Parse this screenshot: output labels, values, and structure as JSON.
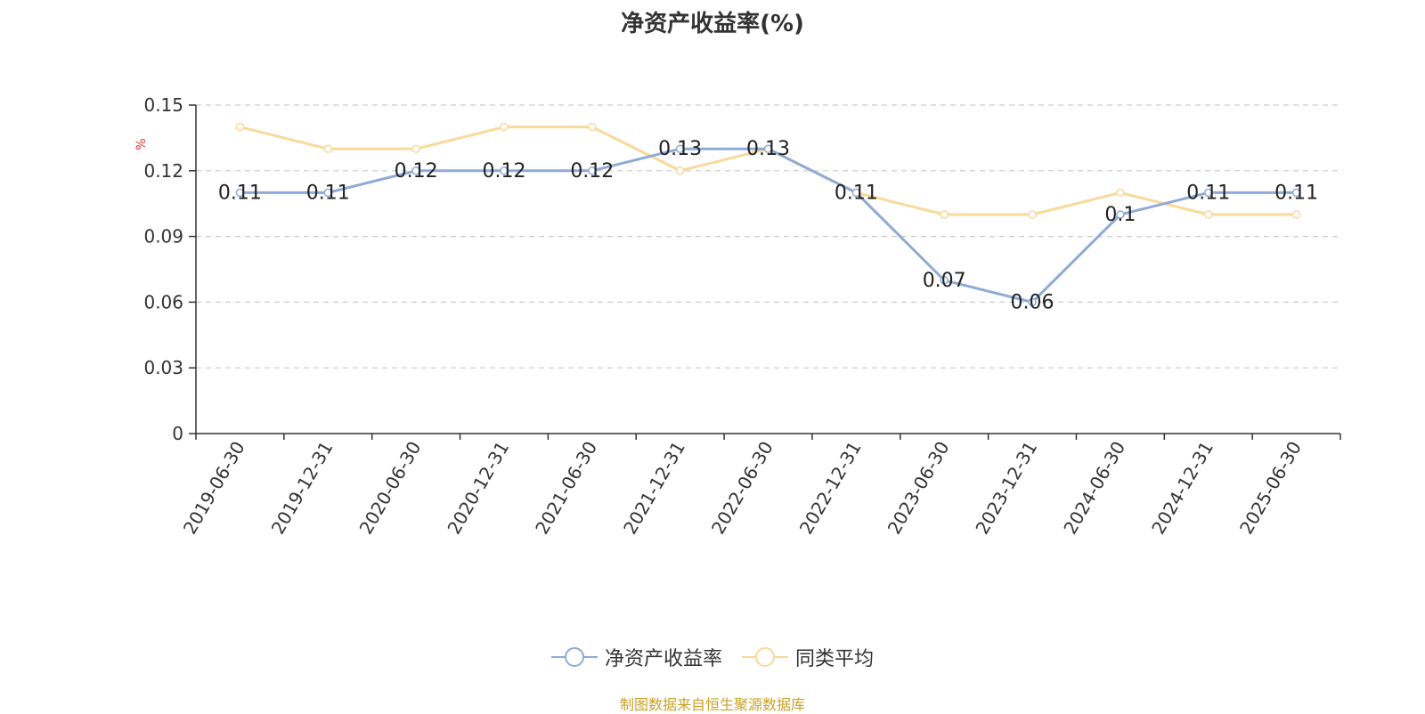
{
  "chart_data": {
    "type": "line",
    "title": "净资产收益率(%)",
    "ylabel": "%",
    "xlabel": "",
    "categories": [
      "2019-06-30",
      "2019-12-31",
      "2020-06-30",
      "2020-12-31",
      "2021-06-30",
      "2021-12-31",
      "2022-06-30",
      "2022-12-31",
      "2023-06-30",
      "2023-12-31",
      "2024-06-30",
      "2024-12-31",
      "2025-06-30"
    ],
    "ylim": [
      0,
      0.15
    ],
    "yticks": [
      "0",
      "0.03",
      "0.06",
      "0.09",
      "0.12",
      "0.15"
    ],
    "grid": true,
    "legend_position": "bottom",
    "series": [
      {
        "name": "净资产收益率",
        "color": "#8eaad6",
        "values": [
          0.11,
          0.11,
          0.12,
          0.12,
          0.12,
          0.13,
          0.13,
          0.11,
          0.07,
          0.06,
          0.1,
          0.11,
          0.11
        ],
        "labels": [
          "0.11",
          "0.11",
          "0.12",
          "0.12",
          "0.12",
          "0.13",
          "0.13",
          "0.11",
          "0.07",
          "0.06",
          "0.1",
          "0.11",
          "0.11"
        ]
      },
      {
        "name": "同类平均",
        "color": "#f9d99a",
        "values": [
          0.14,
          0.13,
          0.13,
          0.14,
          0.14,
          0.12,
          0.13,
          0.11,
          0.1,
          0.1,
          0.11,
          0.1,
          0.1
        ]
      }
    ]
  },
  "source_note": "制图数据来自恒生聚源数据库"
}
